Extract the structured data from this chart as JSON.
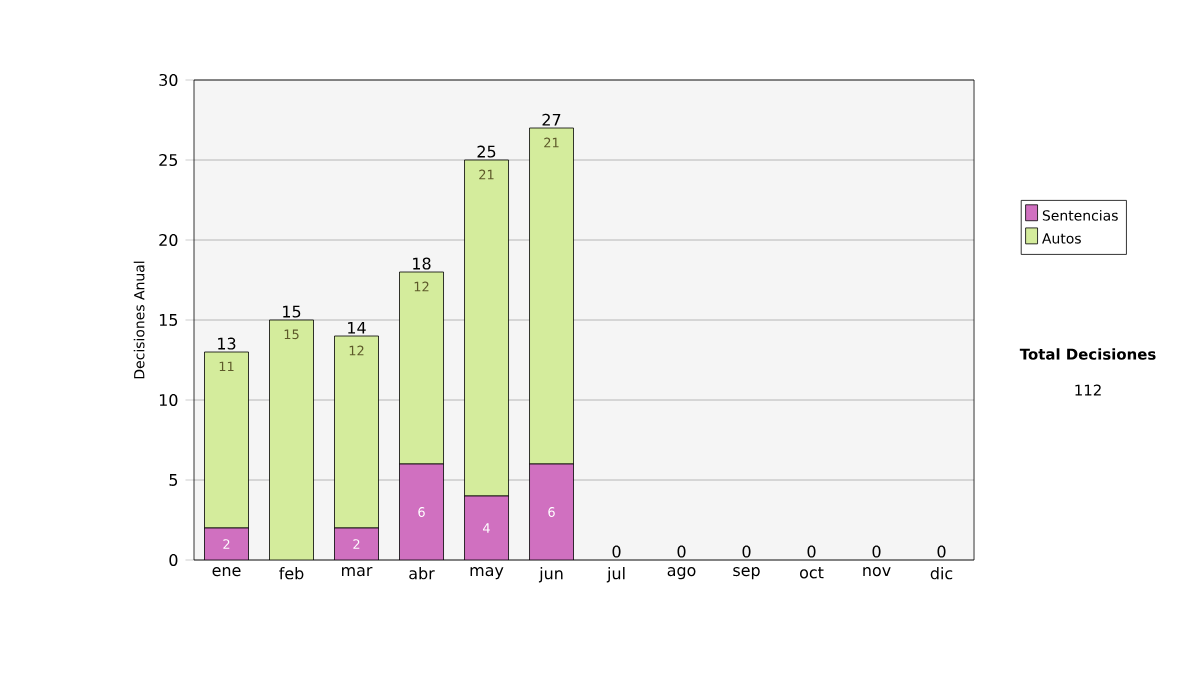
{
  "chart_data": {
    "type": "bar",
    "stacked": true,
    "ylabel": "Decisiones Anual",
    "categories": [
      "ene",
      "feb",
      "mar",
      "abr",
      "may",
      "jun",
      "jul",
      "ago",
      "sep",
      "oct",
      "nov",
      "dic"
    ],
    "series": [
      {
        "name": "Sentencias",
        "color": "#d070c0",
        "values": [
          2,
          0,
          2,
          6,
          4,
          6,
          0,
          0,
          0,
          0,
          0,
          0
        ],
        "value_labels": [
          "2",
          null,
          "2",
          "6",
          "4",
          "6",
          null,
          null,
          null,
          null,
          null,
          null
        ]
      },
      {
        "name": "Autos",
        "color": "#d4ec9c",
        "values": [
          11,
          15,
          12,
          12,
          21,
          21,
          0,
          0,
          0,
          0,
          0,
          0
        ],
        "value_labels": [
          "11",
          "15",
          "12",
          "12",
          "21",
          "21",
          null,
          null,
          null,
          null,
          null,
          null
        ]
      }
    ],
    "totals": [
      "13",
      "15",
      "14",
      "18",
      "25",
      "27",
      "0",
      "0",
      "0",
      "0",
      "0",
      "0"
    ],
    "ylim": [
      0,
      30
    ],
    "yticks": [
      0,
      5,
      10,
      15,
      20,
      25,
      30
    ],
    "grid": "y",
    "legend": "right",
    "annotations": [
      "Total Decisiones",
      "112"
    ]
  }
}
